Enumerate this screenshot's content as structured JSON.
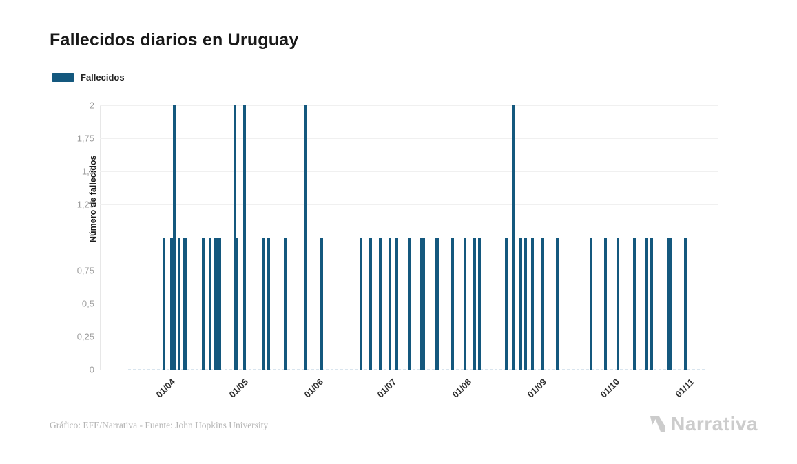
{
  "title": "Fallecidos diarios en Uruguay",
  "legend": {
    "label": "Fallecidos",
    "swatch_color": "#14587e"
  },
  "footer": {
    "credit": "Gráfico: EFE/Narrativa - Fuente: John Hopkins University",
    "brand": "Narrativa"
  },
  "chart_data": {
    "type": "bar",
    "title": "Fallecidos diarios en Uruguay",
    "series_name": "Fallecidos",
    "xlabel": "",
    "ylabel": "Número de fallecidos",
    "ylim": [
      0,
      2
    ],
    "grid": true,
    "legend_position": "top-left",
    "bar_color": "#14587e",
    "ytick_labels": [
      "0",
      "0,25",
      "0,5",
      "0,75",
      "1",
      "1,25",
      "1,5",
      "1,75",
      "2"
    ],
    "ytick_values": [
      0,
      0.25,
      0.5,
      0.75,
      1,
      1.25,
      1.5,
      1.75,
      2
    ],
    "xticks": [
      {
        "label": "01/04",
        "date": "2020-04-01"
      },
      {
        "label": "01/05",
        "date": "2020-05-01"
      },
      {
        "label": "01/06",
        "date": "2020-06-01"
      },
      {
        "label": "01/07",
        "date": "2020-07-01"
      },
      {
        "label": "01/08",
        "date": "2020-08-01"
      },
      {
        "label": "01/09",
        "date": "2020-09-01"
      },
      {
        "label": "01/10",
        "date": "2020-10-01"
      },
      {
        "label": "01/11",
        "date": "2020-11-01"
      }
    ],
    "timeline": {
      "start": "2020-03-14",
      "end": "2020-11-08",
      "zero_fill": true
    },
    "points": [
      {
        "date": "2020-03-29",
        "value": 1
      },
      {
        "date": "2020-04-01",
        "value": 1
      },
      {
        "date": "2020-04-02",
        "value": 2
      },
      {
        "date": "2020-04-04",
        "value": 1
      },
      {
        "date": "2020-04-06",
        "value": 1
      },
      {
        "date": "2020-04-07",
        "value": 1
      },
      {
        "date": "2020-04-14",
        "value": 1
      },
      {
        "date": "2020-04-17",
        "value": 1
      },
      {
        "date": "2020-04-19",
        "value": 1
      },
      {
        "date": "2020-04-20",
        "value": 1
      },
      {
        "date": "2020-04-21",
        "value": 1
      },
      {
        "date": "2020-04-27",
        "value": 2
      },
      {
        "date": "2020-04-28",
        "value": 1
      },
      {
        "date": "2020-05-01",
        "value": 2
      },
      {
        "date": "2020-05-09",
        "value": 1
      },
      {
        "date": "2020-05-11",
        "value": 1
      },
      {
        "date": "2020-05-18",
        "value": 1
      },
      {
        "date": "2020-05-26",
        "value": 2
      },
      {
        "date": "2020-06-02",
        "value": 1
      },
      {
        "date": "2020-06-18",
        "value": 1
      },
      {
        "date": "2020-06-22",
        "value": 1
      },
      {
        "date": "2020-06-26",
        "value": 1
      },
      {
        "date": "2020-06-30",
        "value": 1
      },
      {
        "date": "2020-07-03",
        "value": 1
      },
      {
        "date": "2020-07-08",
        "value": 1
      },
      {
        "date": "2020-07-13",
        "value": 1
      },
      {
        "date": "2020-07-14",
        "value": 1
      },
      {
        "date": "2020-07-19",
        "value": 1
      },
      {
        "date": "2020-07-20",
        "value": 1
      },
      {
        "date": "2020-07-26",
        "value": 1
      },
      {
        "date": "2020-07-31",
        "value": 1
      },
      {
        "date": "2020-08-04",
        "value": 1
      },
      {
        "date": "2020-08-06",
        "value": 1
      },
      {
        "date": "2020-08-17",
        "value": 1
      },
      {
        "date": "2020-08-20",
        "value": 2
      },
      {
        "date": "2020-08-23",
        "value": 1
      },
      {
        "date": "2020-08-25",
        "value": 1
      },
      {
        "date": "2020-08-28",
        "value": 1
      },
      {
        "date": "2020-09-01",
        "value": 1
      },
      {
        "date": "2020-09-07",
        "value": 1
      },
      {
        "date": "2020-09-21",
        "value": 1
      },
      {
        "date": "2020-09-27",
        "value": 1
      },
      {
        "date": "2020-10-02",
        "value": 1
      },
      {
        "date": "2020-10-09",
        "value": 1
      },
      {
        "date": "2020-10-14",
        "value": 1
      },
      {
        "date": "2020-10-16",
        "value": 1
      },
      {
        "date": "2020-10-23",
        "value": 1
      },
      {
        "date": "2020-10-24",
        "value": 1
      },
      {
        "date": "2020-10-30",
        "value": 1
      }
    ]
  }
}
